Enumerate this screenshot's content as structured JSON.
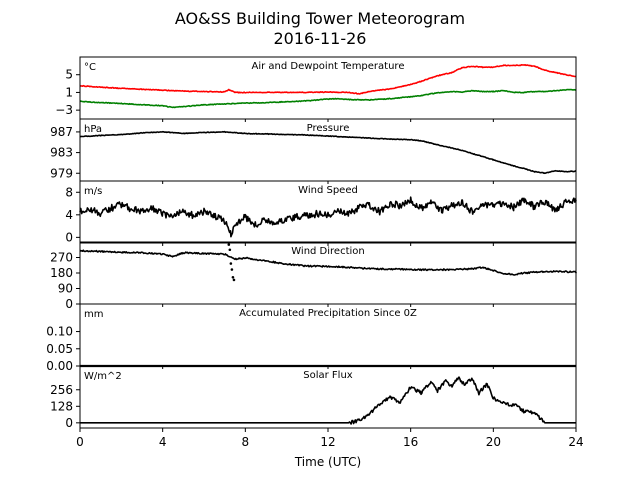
{
  "title_line1": "AO&SS Building Tower Meteorogram",
  "title_line2": "2016-11-26",
  "xlabel": "Time (UTC)",
  "chart_data": {
    "type": "line",
    "x_range": [
      0,
      24
    ],
    "x_ticks": [
      0,
      4,
      8,
      12,
      16,
      20,
      24
    ],
    "x_tick_labels": [
      "0",
      "4",
      "8",
      "12",
      "16",
      "20",
      "24"
    ],
    "panels": [
      {
        "id": "temperature",
        "title": "Air and Dewpoint Temperature",
        "unit": "°C",
        "ylim": [
          -5,
          9
        ],
        "y_ticks": [
          -3,
          1,
          5
        ],
        "y_tick_labels": [
          "−3",
          "1",
          "5"
        ],
        "series": [
          {
            "color": "#ff0000",
            "x": [
              0,
              1,
              2,
              3,
              4,
              5,
              6,
              7,
              7.2,
              7.5,
              8,
              9,
              10,
              11,
              12,
              13,
              13.5,
              14,
              15,
              16,
              16.5,
              17,
              17.5,
              18,
              18.5,
              19,
              19.5,
              20,
              20.5,
              21,
              21.5,
              22,
              22.5,
              23,
              23.5,
              24
            ],
            "y": [
              2.5,
              2.2,
              1.9,
              1.7,
              1.5,
              1.3,
              1.2,
              1.1,
              1.6,
              1.0,
              1.0,
              1.0,
              1.0,
              1.0,
              1.1,
              1.0,
              0.7,
              1.2,
              1.8,
              2.8,
              3.5,
              4.3,
              5.0,
              5.5,
              6.6,
              6.9,
              6.7,
              6.7,
              7.1,
              7.1,
              7.2,
              6.9,
              6.0,
              5.5,
              5.0,
              4.6
            ]
          },
          {
            "color": "#008000",
            "x": [
              0,
              1,
              2,
              3,
              4,
              4.5,
              5,
              6,
              7,
              8,
              9,
              10,
              11,
              12,
              12.5,
              13,
              14,
              15,
              16,
              16.5,
              17,
              17.5,
              18,
              18.5,
              19,
              19.5,
              20,
              20.5,
              21,
              21.5,
              22,
              22.5,
              23,
              23.5,
              24
            ],
            "y": [
              -1.0,
              -1.3,
              -1.5,
              -1.8,
              -2.0,
              -2.4,
              -2.2,
              -1.8,
              -1.6,
              -1.4,
              -1.3,
              -1.1,
              -0.9,
              -0.5,
              -0.4,
              -0.6,
              -0.7,
              -0.4,
              0.0,
              0.3,
              0.7,
              1.0,
              1.2,
              1.1,
              1.4,
              1.2,
              1.2,
              1.4,
              1.0,
              1.0,
              1.2,
              1.2,
              1.4,
              1.6,
              1.6
            ]
          }
        ]
      },
      {
        "id": "pressure",
        "title": "Pressure",
        "unit": "hPa",
        "ylim": [
          977.5,
          989.5
        ],
        "y_ticks": [
          979,
          983,
          987
        ],
        "y_tick_labels": [
          "979",
          "983",
          "987"
        ],
        "series": [
          {
            "color": "#000000",
            "x": [
              0,
              1,
              2,
              3,
              4,
              5,
              6,
              7,
              8,
              9,
              10,
              11,
              12,
              13,
              14,
              15,
              16,
              16.5,
              17,
              17.5,
              18,
              18.5,
              19,
              19.5,
              20,
              20.5,
              21,
              21.5,
              22,
              22.5,
              23,
              23.5,
              24
            ],
            "y": [
              986.1,
              986.3,
              986.5,
              986.8,
              987.0,
              986.7,
              986.9,
              987.0,
              986.7,
              986.6,
              986.5,
              986.4,
              986.2,
              986.0,
              985.8,
              985.6,
              985.5,
              985.3,
              984.8,
              984.3,
              983.9,
              983.4,
              982.8,
              982.2,
              981.6,
              981.0,
              980.4,
              979.9,
              979.3,
              979.0,
              979.5,
              979.3,
              979.4
            ]
          }
        ]
      },
      {
        "id": "wind_speed",
        "title": "Wind Speed",
        "unit": "m/s",
        "ylim": [
          -1,
          10
        ],
        "y_ticks": [
          0,
          4,
          8
        ],
        "y_tick_labels": [
          "0",
          "4",
          "8"
        ],
        "series": [
          {
            "color": "#000000",
            "x": [
              0,
              0.5,
              1,
              1.5,
              2,
              2.5,
              3,
              3.5,
              4,
              4.5,
              5,
              5.5,
              6,
              6.5,
              7,
              7.3,
              7.5,
              8,
              8.5,
              9,
              9.5,
              10,
              10.5,
              11,
              11.5,
              12,
              12.5,
              13,
              13.5,
              14,
              14.5,
              15,
              15.5,
              16,
              16.5,
              17,
              17.5,
              18,
              18.5,
              19,
              19.5,
              20,
              20.5,
              21,
              21.5,
              22,
              22.5,
              23,
              23.5,
              24
            ],
            "y": [
              4.5,
              5.0,
              4.3,
              5.2,
              5.8,
              5.0,
              4.6,
              5.1,
              4.3,
              3.5,
              4.7,
              3.8,
              4.6,
              3.7,
              2.9,
              0.5,
              2.5,
              3.6,
              2.2,
              3.1,
              2.4,
              3.2,
              3.6,
              3.8,
              4.2,
              4.0,
              4.6,
              4.2,
              5.3,
              5.8,
              4.6,
              6.1,
              5.6,
              6.6,
              5.1,
              6.2,
              4.7,
              5.6,
              6.3,
              4.4,
              5.9,
              5.6,
              6.1,
              5.3,
              6.6,
              5.4,
              6.4,
              4.6,
              6.3,
              6.4
            ]
          }
        ]
      },
      {
        "id": "wind_direction",
        "title": "Wind Direction",
        "unit": "",
        "ylim": [
          0,
          360
        ],
        "y_ticks": [
          0,
          90,
          180,
          270
        ],
        "y_tick_labels": [
          "0",
          "90",
          "180",
          "270"
        ],
        "series": [
          {
            "color": "#000000",
            "x": [
              0,
              1,
              2,
              3,
              4,
              4.5,
              5,
              6,
              7,
              7.5,
              8,
              9,
              10,
              11,
              12,
              13,
              14,
              15,
              16,
              17,
              18,
              19,
              19.5,
              20,
              20.5,
              21,
              21.5,
              22,
              23,
              24
            ],
            "y": [
              310,
              305,
              300,
              297,
              290,
              275,
              298,
              293,
              290,
              260,
              268,
              250,
              232,
              220,
              218,
              213,
              205,
              203,
              200,
              198,
              200,
              205,
              212,
              195,
              175,
              172,
              180,
              185,
              190,
              185
            ]
          },
          {
            "color": "#000000",
            "style": "points",
            "x": [
              7.2,
              7.25,
              7.3,
              7.35,
              7.4,
              7.45
            ],
            "y": [
              345,
              315,
              235,
              200,
              155,
              140
            ]
          }
        ]
      },
      {
        "id": "precipitation",
        "title": "Accumulated Precipitation Since 0Z",
        "unit": "mm",
        "ylim": [
          0,
          0.18
        ],
        "y_ticks": [
          0.0,
          0.05,
          0.1
        ],
        "y_tick_labels": [
          "0.00",
          "0.05",
          "0.10"
        ],
        "series": [
          {
            "color": "#000000",
            "x": [
              0,
              24
            ],
            "y": [
              0,
              0
            ]
          }
        ]
      },
      {
        "id": "solar_flux",
        "title": "Solar Flux",
        "unit": "W/m^2",
        "ylim": [
          -40,
          440
        ],
        "y_ticks": [
          0,
          128,
          256
        ],
        "y_tick_labels": [
          "0",
          "128",
          "256"
        ],
        "series": [
          {
            "color": "#000000",
            "x": [
              0,
              13,
              13.5,
              14,
              14.5,
              15,
              15.5,
              16,
              16.5,
              17,
              17.3,
              17.7,
              18,
              18.3,
              18.6,
              19,
              19.3,
              19.7,
              20,
              20.5,
              21,
              21.5,
              22,
              22.5,
              23,
              24
            ],
            "y": [
              0,
              0,
              15,
              60,
              150,
              200,
              160,
              280,
              230,
              320,
              250,
              330,
              280,
              350,
              300,
              340,
              230,
              300,
              190,
              150,
              140,
              90,
              80,
              0,
              0,
              0
            ]
          }
        ]
      }
    ]
  }
}
